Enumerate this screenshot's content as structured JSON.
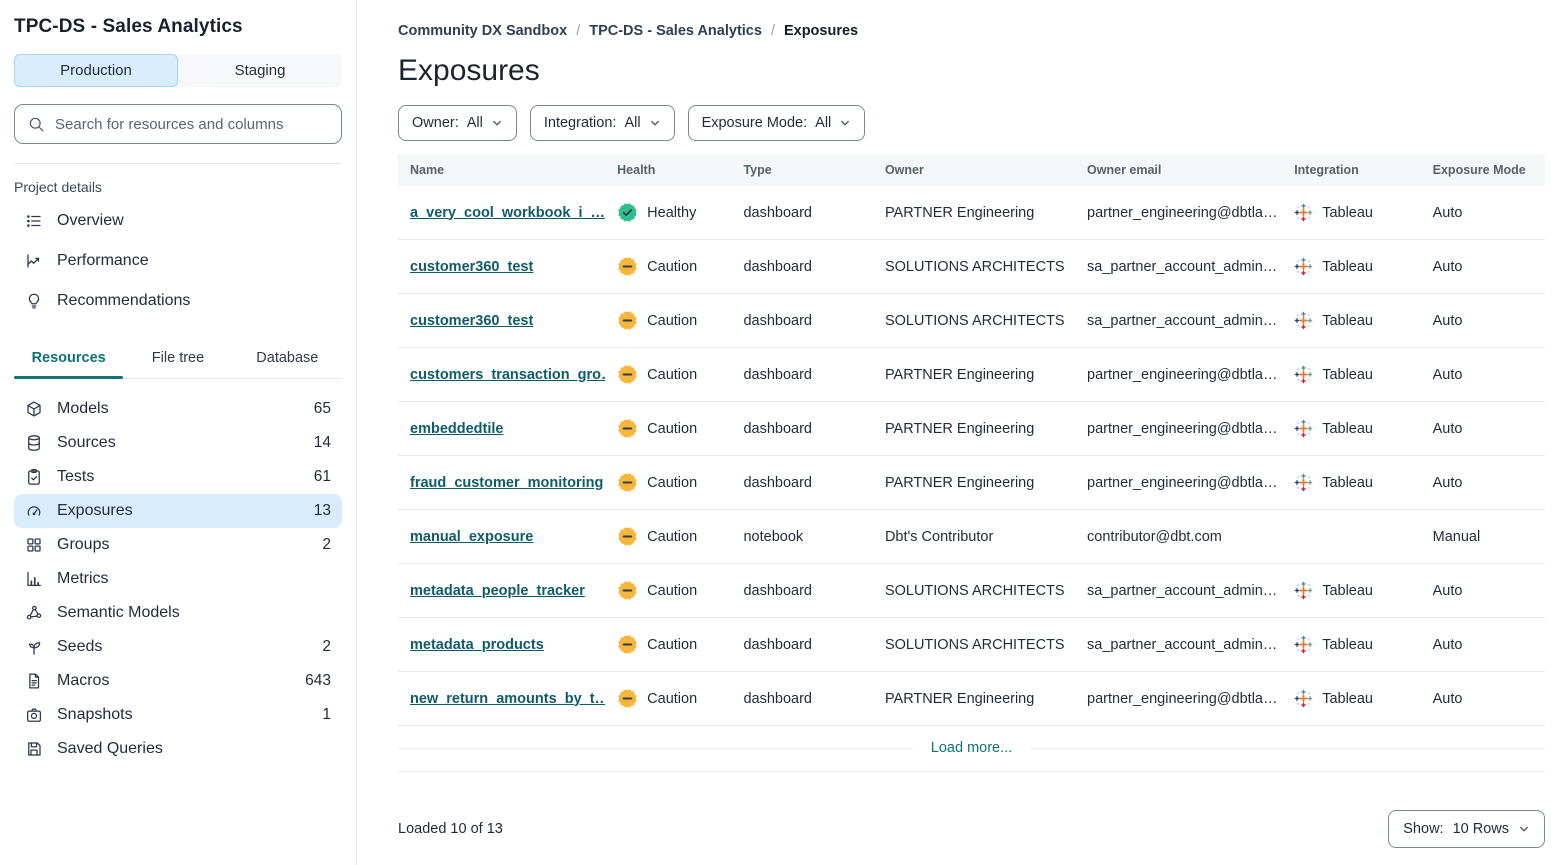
{
  "app": {
    "project_title": "TPC-DS - Sales Analytics",
    "environment_tabs": [
      {
        "label": "Production",
        "active": true
      },
      {
        "label": "Staging",
        "active": false
      }
    ],
    "search": {
      "icon": "search-icon",
      "placeholder": "Search for resources and columns"
    }
  },
  "sidebar": {
    "project_details_label": "Project details",
    "nav_items": [
      {
        "label": "Overview",
        "icon": "list-icon"
      },
      {
        "label": "Performance",
        "icon": "chart-line-icon"
      },
      {
        "label": "Recommendations",
        "icon": "lightbulb-icon"
      }
    ],
    "tabs": [
      {
        "label": "Resources",
        "active": true
      },
      {
        "label": "File tree",
        "active": false
      },
      {
        "label": "Database",
        "active": false
      }
    ],
    "resources": [
      {
        "label": "Models",
        "count": "65",
        "icon": "cube-icon",
        "selected": false
      },
      {
        "label": "Sources",
        "count": "14",
        "icon": "database-icon",
        "selected": false
      },
      {
        "label": "Tests",
        "count": "61",
        "icon": "clipboard-check-icon",
        "selected": false
      },
      {
        "label": "Exposures",
        "count": "13",
        "icon": "gauge-icon",
        "selected": true
      },
      {
        "label": "Groups",
        "count": "2",
        "icon": "grid-icon",
        "selected": false
      },
      {
        "label": "Metrics",
        "count": "",
        "icon": "bar-chart-icon",
        "selected": false
      },
      {
        "label": "Semantic Models",
        "count": "",
        "icon": "graph-icon",
        "selected": false
      },
      {
        "label": "Seeds",
        "count": "2",
        "icon": "seedling-icon",
        "selected": false
      },
      {
        "label": "Macros",
        "count": "643",
        "icon": "document-icon",
        "selected": false
      },
      {
        "label": "Snapshots",
        "count": "1",
        "icon": "camera-icon",
        "selected": false
      },
      {
        "label": "Saved Queries",
        "count": "",
        "icon": "save-icon",
        "selected": false
      }
    ]
  },
  "main": {
    "breadcrumb": [
      {
        "label": "Community DX Sandbox",
        "current": false
      },
      {
        "label": "TPC-DS - Sales Analytics",
        "current": false
      },
      {
        "label": "Exposures",
        "current": true
      }
    ],
    "breadcrumb_separator": "/",
    "page_title": "Exposures",
    "filters": [
      {
        "label": "Owner:",
        "value": "All"
      },
      {
        "label": "Integration:",
        "value": "All"
      },
      {
        "label": "Exposure Mode:",
        "value": "All"
      }
    ],
    "table": {
      "columns": [
        "Name",
        "Health",
        "Type",
        "Owner",
        "Owner email",
        "Integration",
        "Exposure Mode"
      ],
      "rows": [
        {
          "name": "a_very_cool_workbook_i_…",
          "health": {
            "label": "Healthy",
            "status": "healthy"
          },
          "type": "dashboard",
          "owner": "PARTNER Engineering",
          "owner_email": "partner_engineering@dbtla…",
          "integration": "Tableau",
          "exposure_mode": "Auto"
        },
        {
          "name": "customer360_test",
          "health": {
            "label": "Caution",
            "status": "caution"
          },
          "type": "dashboard",
          "owner": "SOLUTIONS ARCHITECTS",
          "owner_email": "sa_partner_account_admin…",
          "integration": "Tableau",
          "exposure_mode": "Auto"
        },
        {
          "name": "customer360_test",
          "health": {
            "label": "Caution",
            "status": "caution"
          },
          "type": "dashboard",
          "owner": "SOLUTIONS ARCHITECTS",
          "owner_email": "sa_partner_account_admin…",
          "integration": "Tableau",
          "exposure_mode": "Auto"
        },
        {
          "name": "customers_transaction_gro…",
          "health": {
            "label": "Caution",
            "status": "caution"
          },
          "type": "dashboard",
          "owner": "PARTNER Engineering",
          "owner_email": "partner_engineering@dbtla…",
          "integration": "Tableau",
          "exposure_mode": "Auto"
        },
        {
          "name": "embeddedtile",
          "health": {
            "label": "Caution",
            "status": "caution"
          },
          "type": "dashboard",
          "owner": "PARTNER Engineering",
          "owner_email": "partner_engineering@dbtla…",
          "integration": "Tableau",
          "exposure_mode": "Auto"
        },
        {
          "name": "fraud_customer_monitoring",
          "health": {
            "label": "Caution",
            "status": "caution"
          },
          "type": "dashboard",
          "owner": "PARTNER Engineering",
          "owner_email": "partner_engineering@dbtla…",
          "integration": "Tableau",
          "exposure_mode": "Auto"
        },
        {
          "name": "manual_exposure",
          "health": {
            "label": "Caution",
            "status": "caution"
          },
          "type": "notebook",
          "owner": "Dbt's Contributor",
          "owner_email": "contributor@dbt.com",
          "integration": "",
          "exposure_mode": "Manual"
        },
        {
          "name": "metadata_people_tracker",
          "health": {
            "label": "Caution",
            "status": "caution"
          },
          "type": "dashboard",
          "owner": "SOLUTIONS ARCHITECTS",
          "owner_email": "sa_partner_account_admin…",
          "integration": "Tableau",
          "exposure_mode": "Auto"
        },
        {
          "name": "metadata_products",
          "health": {
            "label": "Caution",
            "status": "caution"
          },
          "type": "dashboard",
          "owner": "SOLUTIONS ARCHITECTS",
          "owner_email": "sa_partner_account_admin…",
          "integration": "Tableau",
          "exposure_mode": "Auto"
        },
        {
          "name": "new_return_amounts_by_t…",
          "health": {
            "label": "Caution",
            "status": "caution"
          },
          "type": "dashboard",
          "owner": "PARTNER Engineering",
          "owner_email": "partner_engineering@dbtla…",
          "integration": "Tableau",
          "exposure_mode": "Auto"
        }
      ]
    },
    "load_more_label": "Load more...",
    "footer": {
      "loaded_text": "Loaded 10 of 13",
      "show_label": "Show:",
      "show_value": "10 Rows"
    }
  },
  "colors": {
    "accent_teal": "#0d7377",
    "link_teal": "#0d5c68",
    "healthy_green": "#2fbe8f",
    "caution_amber": "#f6b73c",
    "badge_glyph": "#2f3e4d",
    "selected_blue_bg": "#d9ecfb",
    "production_bg": "#d8ecfc"
  }
}
